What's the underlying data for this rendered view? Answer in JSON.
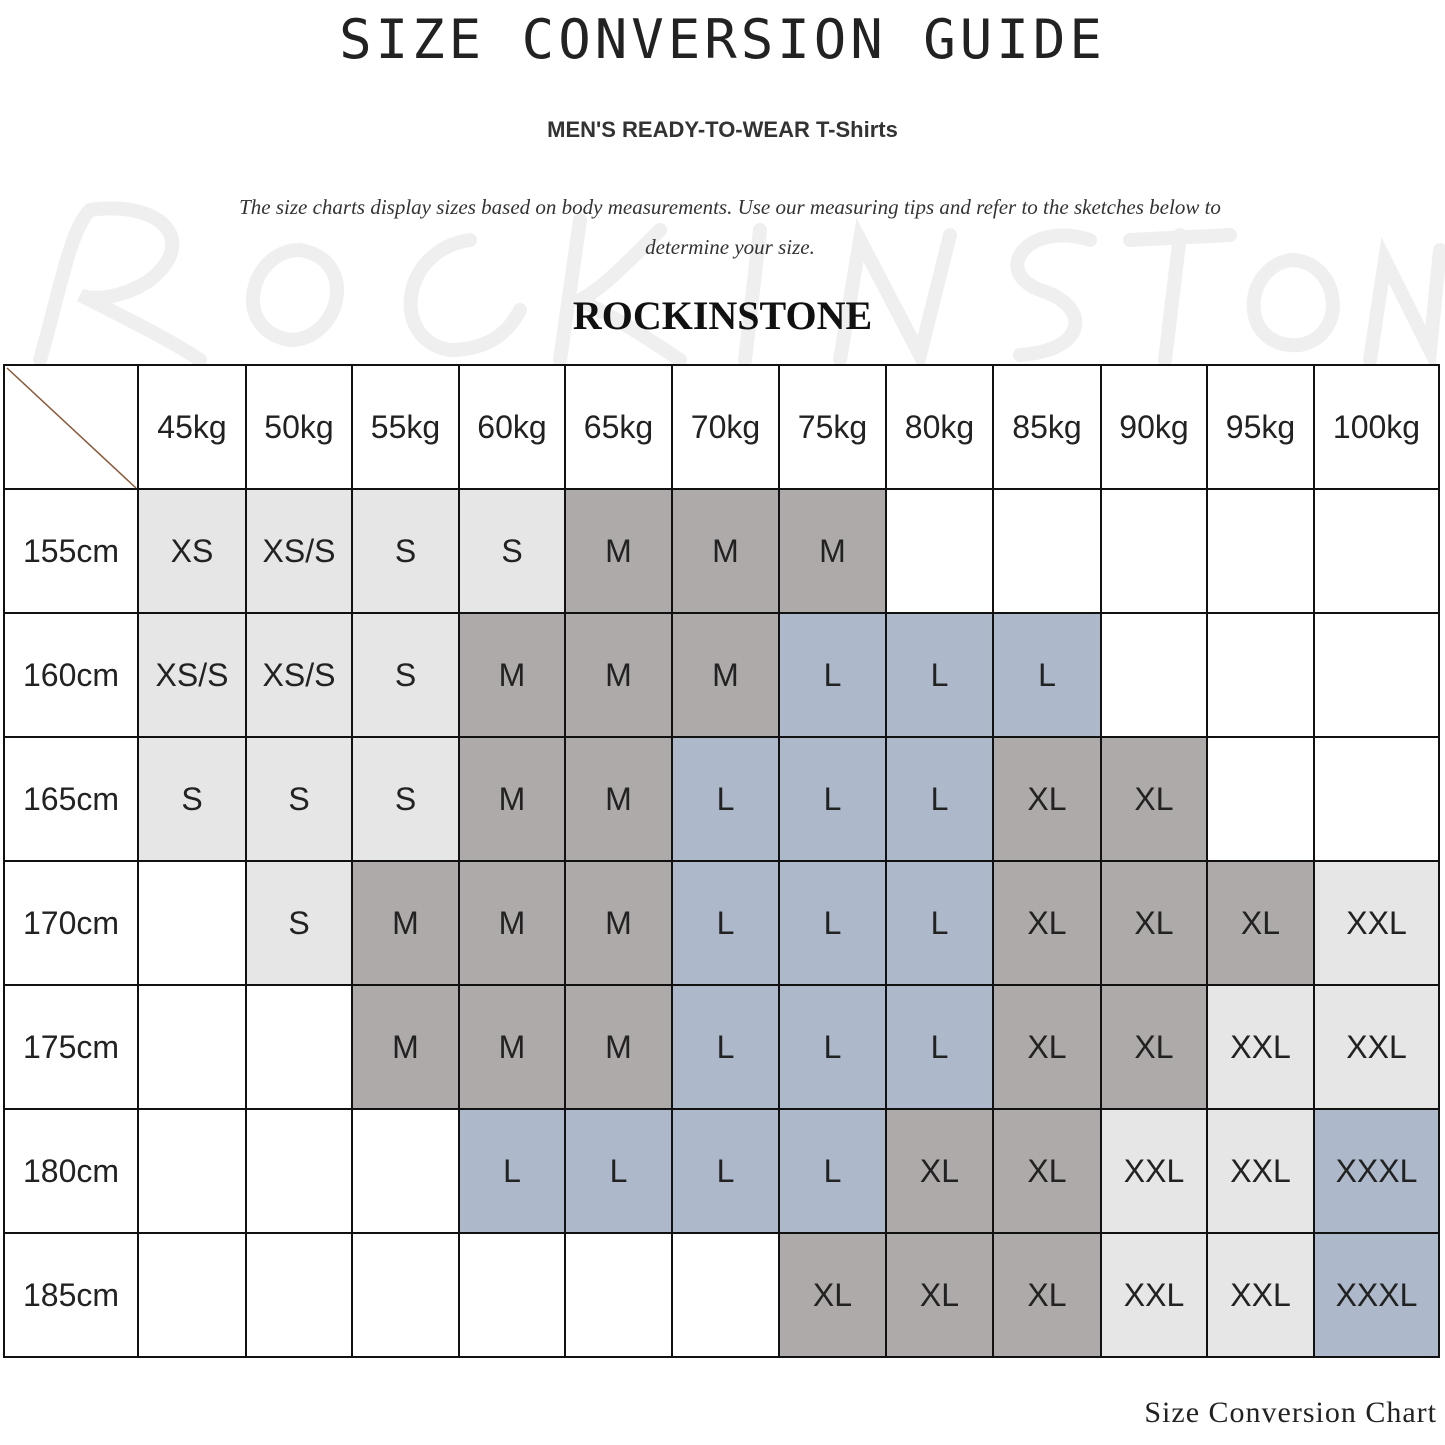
{
  "title": "SIZE CONVERSION GUIDE",
  "subtitle": "MEN'S READY-TO-WEAR T-Shirts",
  "description": "The size charts display sizes based on body measurements. Use our measuring tips and refer to the sketches below to determine your size.",
  "brand": "ROCKINSTONE",
  "watermark": "RockInStone",
  "footer": "Size Conversion Chart",
  "size_colors": {
    "XS": "#e6e6e6",
    "XS/S": "#e6e6e6",
    "S": "#e6e6e6",
    "M": "#aeaaa9",
    "L": "#adb9ca",
    "XL": "#aeaaa9",
    "XXL": "#e6e6e6",
    "XXXL": "#adb9ca"
  },
  "table": {
    "weights": [
      "45kg",
      "50kg",
      "55kg",
      "60kg",
      "65kg",
      "70kg",
      "75kg",
      "80kg",
      "85kg",
      "90kg",
      "95kg",
      "100kg"
    ],
    "rows": [
      {
        "height": "155cm",
        "sizes": [
          "XS",
          "XS/S",
          "S",
          "S",
          "M",
          "M",
          "M",
          "",
          "",
          "",
          "",
          ""
        ]
      },
      {
        "height": "160cm",
        "sizes": [
          "XS/S",
          "XS/S",
          "S",
          "M",
          "M",
          "M",
          "L",
          "L",
          "L",
          "",
          "",
          ""
        ]
      },
      {
        "height": "165cm",
        "sizes": [
          "S",
          "S",
          "S",
          "M",
          "M",
          "L",
          "L",
          "L",
          "XL",
          "XL",
          "",
          ""
        ]
      },
      {
        "height": "170cm",
        "sizes": [
          "",
          "S",
          "M",
          "M",
          "M",
          "L",
          "L",
          "L",
          "XL",
          "XL",
          "XL",
          "XXL"
        ]
      },
      {
        "height": "175cm",
        "sizes": [
          "",
          "",
          "M",
          "M",
          "M",
          "L",
          "L",
          "L",
          "XL",
          "XL",
          "XXL",
          "XXL"
        ]
      },
      {
        "height": "180cm",
        "sizes": [
          "",
          "",
          "",
          "L",
          "L",
          "L",
          "L",
          "XL",
          "XL",
          "XXL",
          "XXL",
          "XXXL"
        ]
      },
      {
        "height": "185cm",
        "sizes": [
          "",
          "",
          "",
          "",
          "",
          "",
          "XL",
          "XL",
          "XL",
          "XXL",
          "XXL",
          "XXXL"
        ]
      }
    ]
  }
}
